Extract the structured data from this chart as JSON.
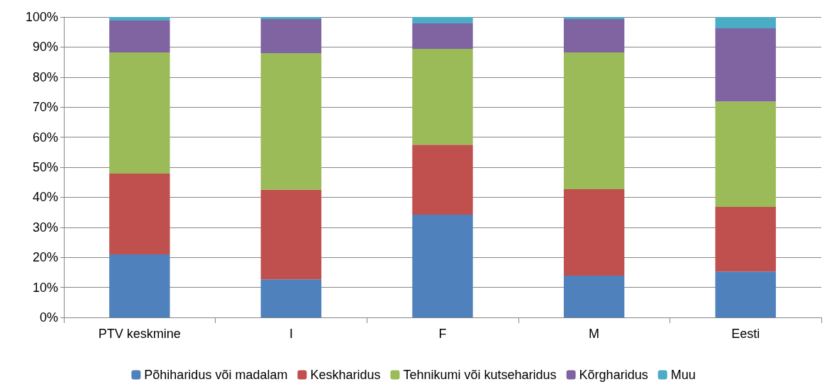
{
  "chart_data": {
    "type": "bar",
    "stacked": true,
    "categories": [
      "PTV keskmine",
      "I",
      "F",
      "M",
      "Eesti"
    ],
    "series": [
      {
        "name": "Põhiharidus või madalam",
        "color": "#4f81bd",
        "values": [
          21.0,
          12.7,
          34.2,
          13.9,
          15.3
        ]
      },
      {
        "name": "Keskharidus",
        "color": "#c0504d",
        "values": [
          26.9,
          29.8,
          23.3,
          28.8,
          21.5
        ]
      },
      {
        "name": "Tehnikumi või kutseharidus",
        "color": "#9bbb59",
        "values": [
          40.3,
          45.5,
          31.9,
          45.5,
          35.1
        ]
      },
      {
        "name": "Kõrgharidus",
        "color": "#8064a2",
        "values": [
          10.6,
          11.3,
          8.5,
          11.1,
          24.3
        ]
      },
      {
        "name": "Muu",
        "color": "#4bacc6",
        "values": [
          1.2,
          0.7,
          2.1,
          0.7,
          3.8
        ]
      }
    ],
    "ylim": [
      0,
      100
    ],
    "yticks": [
      {
        "value": 0,
        "label": "0%"
      },
      {
        "value": 10,
        "label": "10%"
      },
      {
        "value": 20,
        "label": "20%"
      },
      {
        "value": 30,
        "label": "30%"
      },
      {
        "value": 40,
        "label": "40%"
      },
      {
        "value": 50,
        "label": "50%"
      },
      {
        "value": 60,
        "label": "60%"
      },
      {
        "value": 70,
        "label": "70%"
      },
      {
        "value": 80,
        "label": "80%"
      },
      {
        "value": 90,
        "label": "90%"
      },
      {
        "value": 100,
        "label": "100%"
      }
    ],
    "grid": "y",
    "legend": "bottom"
  }
}
